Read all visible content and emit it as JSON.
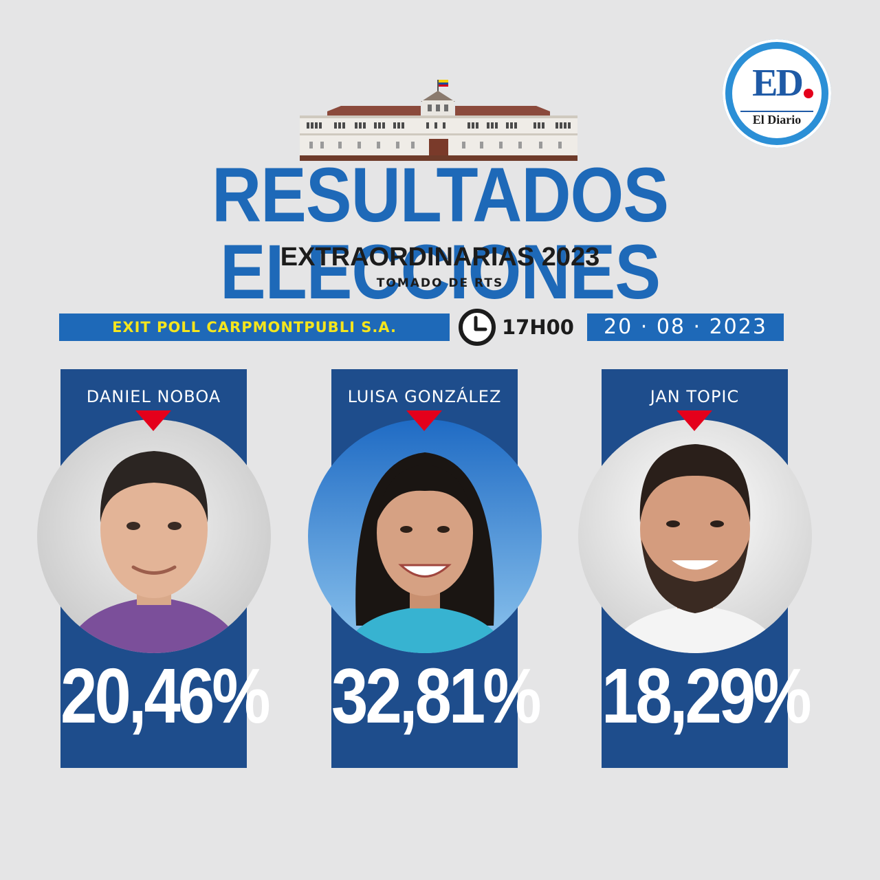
{
  "logo": {
    "mark": "ED",
    "name": "El Diario"
  },
  "header": {
    "title": "RESULTADOS ELECCIONES",
    "subtitle": "EXTRAORDINARIAS 2023",
    "source": "TOMADO DE RTS"
  },
  "info_bar": {
    "poll": "EXIT POLL CARPMONTPUBLI S.A.",
    "time": "17H00",
    "date": "20 · 08 · 2023"
  },
  "candidates": [
    {
      "name": "DANIEL NOBOA",
      "percent": "20,46%",
      "shirt_color": "#7b4f9a"
    },
    {
      "name": "LUISA GONZÁLEZ",
      "percent": "32,81%",
      "shirt_color": "#37b3d1"
    },
    {
      "name": "JAN TOPIC",
      "percent": "18,29%",
      "shirt_color": "#f4f4f4"
    }
  ],
  "colors": {
    "accent_blue": "#1e69b8",
    "card_blue": "#1e4d8c",
    "marker_red": "#e4001b",
    "poll_text": "#f4e51d"
  }
}
